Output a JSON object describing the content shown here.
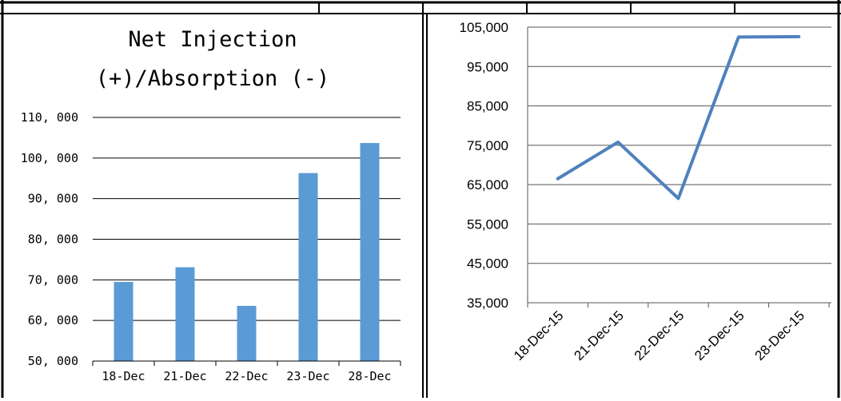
{
  "colors": {
    "bar": "#5b9bd5",
    "line": "#4f81bd",
    "grid": "#000000",
    "frame": "#000000"
  },
  "chart_data": [
    {
      "type": "bar",
      "title": "Net Injection (+)/Absorption (-)",
      "title_lines": [
        "Net Injection",
        "(+)/Absorption (-)"
      ],
      "categories": [
        "18-Dec",
        "21-Dec",
        "22-Dec",
        "23-Dec",
        "28-Dec"
      ],
      "values": [
        69500,
        73100,
        63600,
        96300,
        103700
      ],
      "ylim": [
        50000,
        110000
      ],
      "yticks": [
        50000,
        60000,
        70000,
        80000,
        90000,
        100000,
        110000
      ],
      "ytick_labels": [
        "50, 000",
        "60, 000",
        "70, 000",
        "80, 000",
        "90, 000",
        "100, 000",
        "110, 000"
      ],
      "grid": true
    },
    {
      "type": "line",
      "categories": [
        "18-Dec-15",
        "21-Dec-15",
        "22-Dec-15",
        "23-Dec-15",
        "28-Dec-15"
      ],
      "values": [
        66500,
        75800,
        61500,
        102500,
        102600
      ],
      "ylim": [
        35000,
        105000
      ],
      "yticks": [
        35000,
        45000,
        55000,
        65000,
        75000,
        85000,
        95000,
        105000
      ],
      "ytick_labels": [
        "35,000",
        "45,000",
        "55,000",
        "65,000",
        "75,000",
        "85,000",
        "95,000",
        "105,000"
      ],
      "grid": true
    }
  ]
}
